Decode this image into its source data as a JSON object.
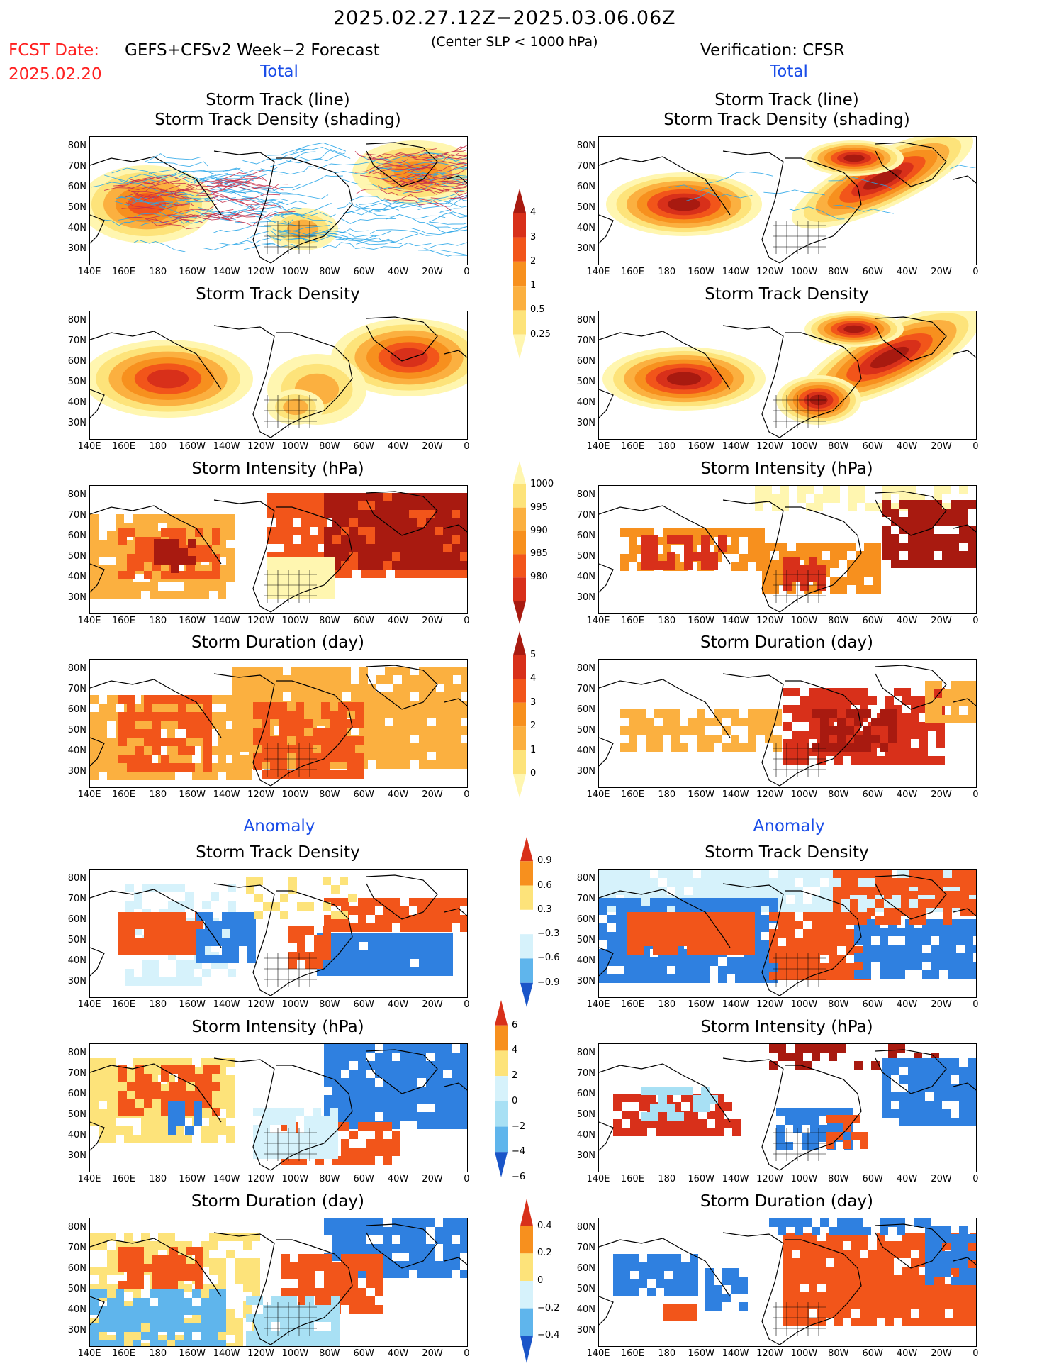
{
  "header": {
    "date_range": "2025.02.27.12Z−2025.03.06.06Z",
    "fcst_label": "FCST Date:",
    "fcst_date": "2025.02.20",
    "forecast_title": "GEFS+CFSv2 Week−2 Forecast",
    "subtitle": "(Center SLP < 1000 hPa)",
    "verification": "Verification: CFSR"
  },
  "sections": {
    "total": "Total",
    "anomaly": "Anomaly"
  },
  "axes": {
    "lat_labels": [
      "80N",
      "70N",
      "60N",
      "50N",
      "40N",
      "30N"
    ],
    "lon_labels": [
      "140E",
      "160E",
      "180",
      "160W",
      "140W",
      "120W",
      "100W",
      "80W",
      "60W",
      "40W",
      "20W",
      "0"
    ]
  },
  "colors": {
    "pos": [
      "#fff6b0",
      "#fde37a",
      "#fbb040",
      "#f7901e",
      "#f2551a",
      "#d8301a",
      "#a81a10"
    ],
    "neg": [
      "#d6f2fb",
      "#a8e0f4",
      "#5fb5ec",
      "#2f80e0",
      "#1a55c8"
    ],
    "track_blue": "#2aa6e8",
    "track_red": "#c8304a"
  },
  "panels": [
    {
      "id": "fc-track",
      "col": "left",
      "row": 0,
      "title": "Storm Track (line)",
      "title2": "Storm Track Density (shading)"
    },
    {
      "id": "vf-track",
      "col": "right",
      "row": 0,
      "title": "Storm Track (line)",
      "title2": "Storm Track Density (shading)"
    },
    {
      "id": "fc-density",
      "col": "left",
      "row": 1,
      "title": "Storm Track Density"
    },
    {
      "id": "vf-density",
      "col": "right",
      "row": 1,
      "title": "Storm Track Density"
    },
    {
      "id": "fc-intensity",
      "col": "left",
      "row": 2,
      "title": "Storm Intensity (hPa)"
    },
    {
      "id": "vf-intensity",
      "col": "right",
      "row": 2,
      "title": "Storm Intensity (hPa)"
    },
    {
      "id": "fc-duration",
      "col": "left",
      "row": 3,
      "title": "Storm Duration (day)"
    },
    {
      "id": "vf-duration",
      "col": "right",
      "row": 3,
      "title": "Storm Duration (day)"
    },
    {
      "id": "fc-an-density",
      "col": "left",
      "row": 4,
      "title": "Storm Track Density"
    },
    {
      "id": "vf-an-density",
      "col": "right",
      "row": 4,
      "title": "Storm Track Density"
    },
    {
      "id": "fc-an-intensity",
      "col": "left",
      "row": 5,
      "title": "Storm Intensity (hPa)"
    },
    {
      "id": "vf-an-intensity",
      "col": "right",
      "row": 5,
      "title": "Storm Intensity (hPa)"
    },
    {
      "id": "fc-an-duration",
      "col": "left",
      "row": 6,
      "title": "Storm Duration (day)"
    },
    {
      "id": "vf-an-duration",
      "col": "right",
      "row": 6,
      "title": "Storm Duration (day)"
    }
  ],
  "colorbars": [
    {
      "id": "cb-density",
      "labels": [
        "4",
        "3",
        "2",
        "1",
        "0.5",
        "0.25"
      ]
    },
    {
      "id": "cb-intensity",
      "labels": [
        "1000",
        "995",
        "990",
        "985",
        "980"
      ]
    },
    {
      "id": "cb-duration",
      "labels": [
        "5",
        "4",
        "3",
        "2",
        "1",
        "0"
      ]
    },
    {
      "id": "cb-an-density",
      "labels": [
        "0.9",
        "0.6",
        "0.3",
        "−0.3",
        "−0.6",
        "−0.9"
      ]
    },
    {
      "id": "cb-an-intensity",
      "labels": [
        "6",
        "4",
        "2",
        "0",
        "−2",
        "−4",
        "−6"
      ]
    },
    {
      "id": "cb-an-duration",
      "labels": [
        "0.4",
        "0.2",
        "0",
        "−0.2",
        "−0.4"
      ]
    }
  ]
}
